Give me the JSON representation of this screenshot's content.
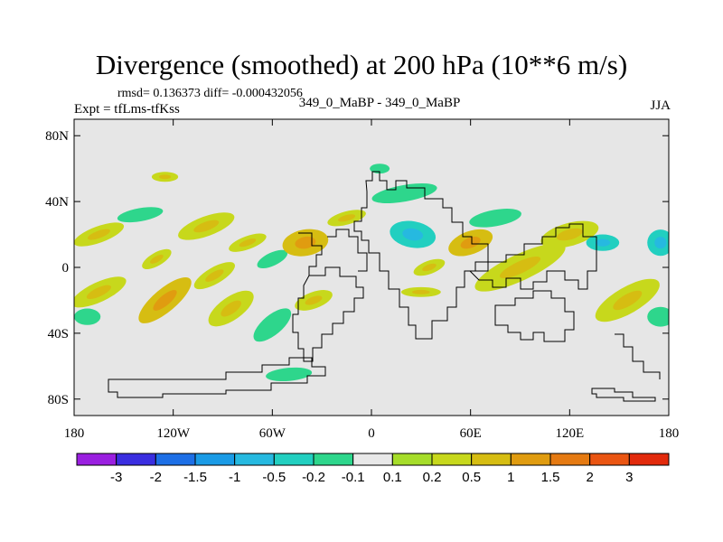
{
  "chart_data": {
    "type": "heatmap",
    "title": "Divergence (smoothed) at 200 hPa (10**6 m/s)",
    "stats_line": "rmsd= 0.136373 diff= -0.000432056",
    "expt_line": "Expt = tfLms-tfKss",
    "center_line": "349_0_MaBP - 349_0_MaBP",
    "season": "JJA",
    "x_range": [
      -180,
      180
    ],
    "y_range": [
      -90,
      90
    ],
    "x_ticks": [
      {
        "value": -180,
        "label": "180"
      },
      {
        "value": -120,
        "label": "120W"
      },
      {
        "value": -60,
        "label": "60W"
      },
      {
        "value": 0,
        "label": "0"
      },
      {
        "value": 60,
        "label": "60E"
      },
      {
        "value": 120,
        "label": "120E"
      },
      {
        "value": 180,
        "label": "180"
      }
    ],
    "y_ticks": [
      {
        "value": 80,
        "label": "80N"
      },
      {
        "value": 40,
        "label": "40N"
      },
      {
        "value": 0,
        "label": "0"
      },
      {
        "value": -40,
        "label": "40S"
      },
      {
        "value": -80,
        "label": "80S"
      }
    ],
    "colorbar": {
      "colors": [
        "#9a1fe0",
        "#3a2ee0",
        "#1d6fe6",
        "#1a9be6",
        "#26b9e0",
        "#22cfc0",
        "#2ed68c",
        "#e8e8e8",
        "#a6dd2a",
        "#c7d81c",
        "#d6bd12",
        "#e09c10",
        "#e57a12",
        "#ea5512",
        "#e22a0c"
      ],
      "labels": [
        "-3",
        "-2",
        "-1.5",
        "-1",
        "-0.5",
        "-0.2",
        "-0.1",
        "0.1",
        "0.2",
        "0.5",
        "1",
        "1.5",
        "2",
        "3"
      ]
    },
    "features": [
      {
        "lon": -165,
        "lat": 20,
        "rx": 16,
        "ry": 5,
        "rot": -20,
        "level": 0.3
      },
      {
        "lon": -165,
        "lat": -15,
        "rx": 18,
        "ry": 6,
        "rot": -25,
        "level": 0.5
      },
      {
        "lon": -172,
        "lat": -30,
        "rx": 8,
        "ry": 5,
        "rot": 0,
        "level": -0.15
      },
      {
        "lon": -140,
        "lat": 32,
        "rx": 14,
        "ry": 4,
        "rot": -10,
        "level": -0.15
      },
      {
        "lon": -130,
        "lat": 5,
        "rx": 10,
        "ry": 4,
        "rot": -30,
        "level": 0.3
      },
      {
        "lon": -125,
        "lat": -20,
        "rx": 20,
        "ry": 7,
        "rot": -40,
        "level": 0.8
      },
      {
        "lon": -100,
        "lat": 25,
        "rx": 18,
        "ry": 6,
        "rot": -20,
        "level": 0.3
      },
      {
        "lon": -95,
        "lat": -5,
        "rx": 14,
        "ry": 5,
        "rot": -30,
        "level": 0.3
      },
      {
        "lon": -85,
        "lat": -25,
        "rx": 16,
        "ry": 7,
        "rot": -35,
        "level": 0.3
      },
      {
        "lon": -75,
        "lat": 15,
        "rx": 12,
        "ry": 4,
        "rot": -20,
        "level": 0.3
      },
      {
        "lon": -60,
        "lat": 5,
        "rx": 10,
        "ry": 4,
        "rot": -25,
        "level": -0.15
      },
      {
        "lon": -60,
        "lat": -35,
        "rx": 14,
        "ry": 6,
        "rot": -40,
        "level": -0.15
      },
      {
        "lon": -40,
        "lat": 15,
        "rx": 14,
        "ry": 8,
        "rot": -10,
        "level": 0.8
      },
      {
        "lon": -35,
        "lat": -20,
        "rx": 12,
        "ry": 5,
        "rot": -20,
        "level": 0.3
      },
      {
        "lon": -15,
        "lat": 30,
        "rx": 12,
        "ry": 4,
        "rot": -15,
        "level": 0.3
      },
      {
        "lon": 5,
        "lat": 60,
        "rx": 6,
        "ry": 3,
        "rot": 0,
        "level": -0.15
      },
      {
        "lon": 20,
        "lat": 45,
        "rx": 20,
        "ry": 5,
        "rot": -10,
        "level": -0.15
      },
      {
        "lon": 25,
        "lat": 20,
        "rx": 14,
        "ry": 8,
        "rot": 10,
        "level": -0.3
      },
      {
        "lon": 35,
        "lat": 0,
        "rx": 10,
        "ry": 4,
        "rot": -20,
        "level": 0.3
      },
      {
        "lon": 60,
        "lat": 15,
        "rx": 14,
        "ry": 7,
        "rot": -20,
        "level": 0.8
      },
      {
        "lon": 90,
        "lat": 0,
        "rx": 30,
        "ry": 8,
        "rot": -25,
        "level": 0.5
      },
      {
        "lon": 75,
        "lat": 30,
        "rx": 16,
        "ry": 5,
        "rot": -10,
        "level": -0.15
      },
      {
        "lon": 120,
        "lat": 20,
        "rx": 18,
        "ry": 7,
        "rot": -15,
        "level": 0.3
      },
      {
        "lon": 140,
        "lat": 15,
        "rx": 10,
        "ry": 5,
        "rot": 0,
        "level": -0.3
      },
      {
        "lon": 155,
        "lat": -20,
        "rx": 22,
        "ry": 8,
        "rot": -30,
        "level": 0.5
      },
      {
        "lon": 175,
        "lat": 15,
        "rx": 8,
        "ry": 8,
        "rot": 0,
        "level": -0.3
      },
      {
        "lon": 175,
        "lat": -30,
        "rx": 8,
        "ry": 6,
        "rot": 0,
        "level": -0.15
      },
      {
        "lon": 30,
        "lat": -15,
        "rx": 12,
        "ry": 3,
        "rot": 0,
        "level": 0.3
      },
      {
        "lon": -50,
        "lat": -65,
        "rx": 14,
        "ry": 4,
        "rot": -5,
        "level": -0.15
      },
      {
        "lon": -125,
        "lat": 55,
        "rx": 8,
        "ry": 3,
        "rot": 0,
        "level": 0.3
      }
    ]
  }
}
